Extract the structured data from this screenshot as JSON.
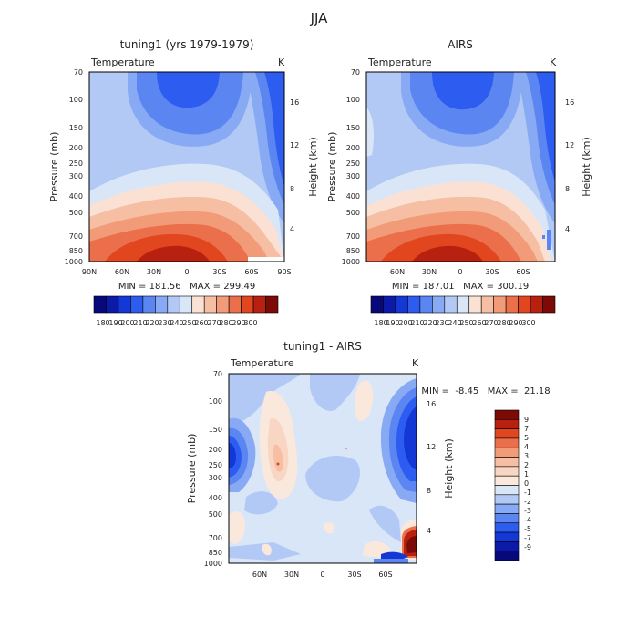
{
  "figure": {
    "title": "JJA"
  },
  "chart_data": [
    {
      "type": "heatmap",
      "title": "tuning1 (yrs 1979-1979)",
      "field_label": "Temperature",
      "units": "K",
      "ylabel": "Pressure (mb)",
      "y2label": "Height (km)",
      "x_ticks": [
        "90N",
        "60N",
        "30N",
        "0",
        "30S",
        "60S",
        "90S"
      ],
      "y_ticks": [
        "70",
        "100",
        "150",
        "200",
        "250",
        "300",
        "400",
        "500",
        "700",
        "850",
        "1000"
      ],
      "y2_ticks": [
        "16",
        "12",
        "8",
        "4"
      ],
      "stats": "MIN = 181.56   MAX = 299.49",
      "colorbar_labels": [
        "180",
        "190",
        "200",
        "210",
        "220",
        "230",
        "240",
        "250",
        "260",
        "270",
        "280",
        "290",
        "300"
      ]
    },
    {
      "type": "heatmap",
      "title": "AIRS",
      "field_label": "Temperature",
      "units": "K",
      "ylabel": "Pressure (mb)",
      "y2label": "Height (km)",
      "x_ticks": [
        "60N",
        "30N",
        "0",
        "30S",
        "60S"
      ],
      "y_ticks": [
        "70",
        "100",
        "150",
        "200",
        "250",
        "300",
        "400",
        "500",
        "700",
        "850",
        "1000"
      ],
      "y2_ticks": [
        "16",
        "12",
        "8",
        "4"
      ],
      "stats": "MIN = 187.01   MAX = 300.19",
      "colorbar_labels": [
        "180",
        "190",
        "200",
        "210",
        "220",
        "230",
        "240",
        "250",
        "260",
        "270",
        "280",
        "290",
        "300"
      ]
    },
    {
      "type": "heatmap",
      "title": "tuning1 - AIRS",
      "field_label": "Temperature",
      "units": "K",
      "ylabel": "Pressure (mb)",
      "y2label": "Height (km)",
      "x_ticks": [
        "60N",
        "30N",
        "0",
        "30S",
        "60S"
      ],
      "y_ticks": [
        "70",
        "100",
        "150",
        "200",
        "250",
        "300",
        "400",
        "500",
        "700",
        "850",
        "1000"
      ],
      "y2_ticks": [
        "16",
        "12",
        "8",
        "4"
      ],
      "stats": "MIN =  -8.45   MAX =  21.18",
      "colorbar_labels": [
        "9",
        "7",
        "5",
        "4",
        "3",
        "2",
        "1",
        "0",
        "-1",
        "-2",
        "-3",
        "-4",
        "-5",
        "-7",
        "-9"
      ]
    }
  ],
  "colors": {
    "temperature_scale": [
      "#07087a",
      "#0b1ba8",
      "#1338d6",
      "#2d5cf0",
      "#5b86f2",
      "#88a9f3",
      "#b2c9f5",
      "#d8e6f8",
      "#fbe1d3",
      "#f6bfa4",
      "#f29b78",
      "#ec6f4b",
      "#e1461f",
      "#b82110",
      "#7c0a06"
    ],
    "difference_scale": [
      "#7c0a06",
      "#b82110",
      "#e1461f",
      "#ec6f4b",
      "#f29b78",
      "#f6bfa4",
      "#f9d6c4",
      "#fbe8dc",
      "#d8e6f8",
      "#b2c9f5",
      "#88a9f3",
      "#5b86f2",
      "#2d5cf0",
      "#1338d6",
      "#0b1ba8",
      "#07087a"
    ]
  }
}
